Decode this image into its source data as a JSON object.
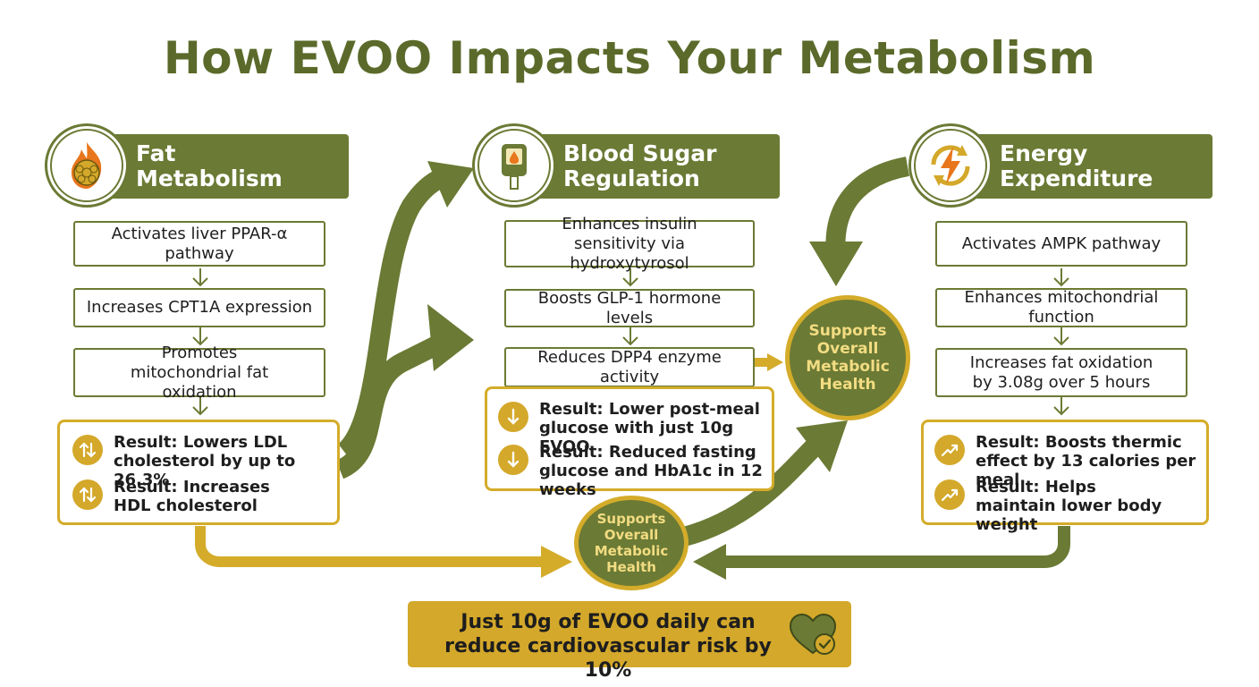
{
  "title": "How EVOO Impacts Your Metabolism",
  "colors": {
    "olive": "#6b7a34",
    "gold": "#d4ac2a",
    "health_text": "#f2dc82"
  },
  "columns": [
    {
      "heading": [
        "Fat",
        "Metabolism"
      ],
      "icon": "flame-fat-cell-icon",
      "steps": [
        "Activates liver PPAR-α pathway",
        "Increases CPT1A expression",
        "Promotes mitochondrial fat oxidation"
      ],
      "results": [
        {
          "icon": "up-down-arrows-icon",
          "text": "Result: Lowers LDL cholesterol by up to 26.3%"
        },
        {
          "icon": "up-down-arrows-icon",
          "text": "Result: Increases HDL cholesterol"
        }
      ]
    },
    {
      "heading": [
        "Blood Sugar",
        "Regulation"
      ],
      "icon": "glucose-meter-icon",
      "steps": [
        "Enhances insulin sensitivity via hydroxytyrosol",
        "Boosts GLP-1 hormone levels",
        "Reduces DPP4 enzyme activity"
      ],
      "results": [
        {
          "icon": "down-arrow-icon",
          "text": "Result: Lower post-meal glucose with just 10g EVOO"
        },
        {
          "icon": "down-arrow-icon",
          "text": "Result: Reduced fasting glucose and HbA1c in 12 weeks"
        }
      ]
    },
    {
      "heading": [
        "Energy",
        "Expenditure"
      ],
      "icon": "lightning-cycle-icon",
      "steps": [
        "Activates AMPK pathway",
        "Enhances mitochondrial function",
        "Increases fat oxidation by 3.08g over 5 hours"
      ],
      "results": [
        {
          "icon": "trend-up-icon",
          "text": "Result: Boosts thermic effect by 13 calories per meal"
        },
        {
          "icon": "trend-up-icon",
          "text": "Result: Helps maintain lower body weight"
        }
      ]
    }
  ],
  "health_circles": [
    {
      "label": "Supports Overall Metabolic Health"
    },
    {
      "label": "Supports Overall Metabolic Health"
    }
  ],
  "footer": {
    "text": "Just 10g of EVOO daily can reduce cardiovascular risk by 10%",
    "icon": "heart-check-icon"
  }
}
